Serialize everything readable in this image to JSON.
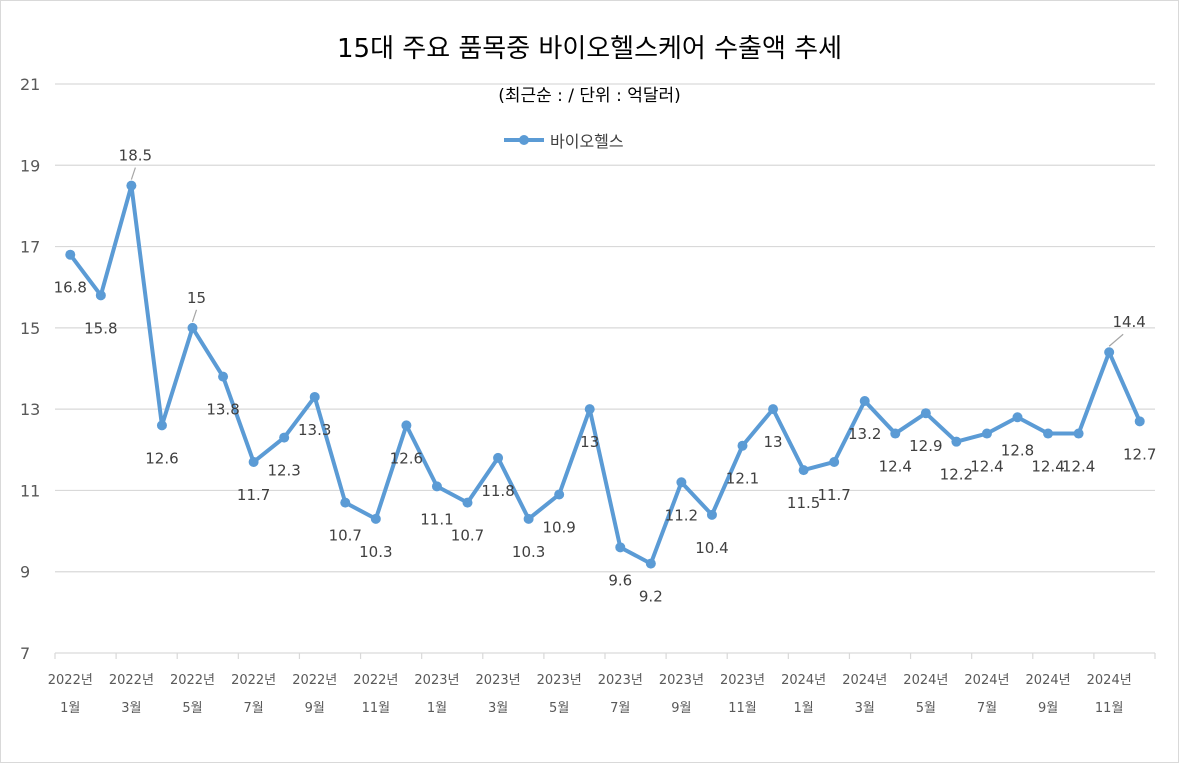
{
  "colors": {
    "series": "#5b9bd5",
    "grid": "#d9d9d9",
    "axis_text": "#595959",
    "label_text": "#404040",
    "leader": "#a6a6a6"
  },
  "chart_data": {
    "type": "line",
    "title": "15대 주요 품목중 바이오헬스케어 수출액 추세",
    "subtitle": "(최근순 : / 단위 : 억달러)",
    "xlabel": "",
    "ylabel": "",
    "ylim": [
      7,
      21
    ],
    "yticks": [
      7,
      9,
      11,
      13,
      15,
      17,
      19,
      21
    ],
    "grid": true,
    "legend_position": "top-center",
    "x": [
      "2022-01",
      "2022-02",
      "2022-03",
      "2022-04",
      "2022-05",
      "2022-06",
      "2022-07",
      "2022-08",
      "2022-09",
      "2022-10",
      "2022-11",
      "2022-12",
      "2023-01",
      "2023-02",
      "2023-03",
      "2023-04",
      "2023-05",
      "2023-06",
      "2023-07",
      "2023-08",
      "2023-09",
      "2023-10",
      "2023-11",
      "2023-12",
      "2024-01",
      "2024-02",
      "2024-03",
      "2024-04",
      "2024-05",
      "2024-06",
      "2024-07",
      "2024-08",
      "2024-09",
      "2024-10",
      "2024-11",
      "2024-12"
    ],
    "x_tick_labels": [
      {
        "year": "2022년",
        "month": "1월"
      },
      {
        "year": "2022년",
        "month": "3월"
      },
      {
        "year": "2022년",
        "month": "5월"
      },
      {
        "year": "2022년",
        "month": "7월"
      },
      {
        "year": "2022년",
        "month": "9월"
      },
      {
        "year": "2022년",
        "month": "11월"
      },
      {
        "year": "2023년",
        "month": "1월"
      },
      {
        "year": "2023년",
        "month": "3월"
      },
      {
        "year": "2023년",
        "month": "5월"
      },
      {
        "year": "2023년",
        "month": "7월"
      },
      {
        "year": "2023년",
        "month": "9월"
      },
      {
        "year": "2023년",
        "month": "11월"
      },
      {
        "year": "2024년",
        "month": "1월"
      },
      {
        "year": "2024년",
        "month": "3월"
      },
      {
        "year": "2024년",
        "month": "5월"
      },
      {
        "year": "2024년",
        "month": "7월"
      },
      {
        "year": "2024년",
        "month": "9월"
      },
      {
        "year": "2024년",
        "month": "11월"
      }
    ],
    "series": [
      {
        "name": "바이오헬스",
        "values": [
          16.8,
          15.8,
          18.5,
          12.6,
          15,
          13.8,
          11.7,
          12.3,
          13.3,
          10.7,
          10.3,
          12.6,
          11.1,
          10.7,
          11.8,
          10.3,
          10.9,
          13,
          9.6,
          9.2,
          11.2,
          10.4,
          12.1,
          13,
          11.5,
          11.7,
          13.2,
          12.4,
          12.9,
          12.2,
          12.4,
          12.8,
          12.4,
          12.4,
          14.4,
          12.7
        ],
        "data_labels": [
          "16.8",
          "15.8",
          "18.5",
          "12.6",
          "15",
          "13.8",
          "11.7",
          "12.3",
          "13.3",
          "10.7",
          "10.3",
          "12.6",
          "11.1",
          "10.7",
          "11.8",
          "10.3",
          "10.9",
          "13",
          "9.6",
          "9.2",
          "11.2",
          "10.4",
          "12.1",
          "13",
          "11.5",
          "11.7",
          "13.2",
          "12.4",
          "12.9",
          "12.2",
          "12.4",
          "12.8",
          "12.4",
          "12.4",
          "14.4",
          "12.7"
        ]
      }
    ]
  }
}
